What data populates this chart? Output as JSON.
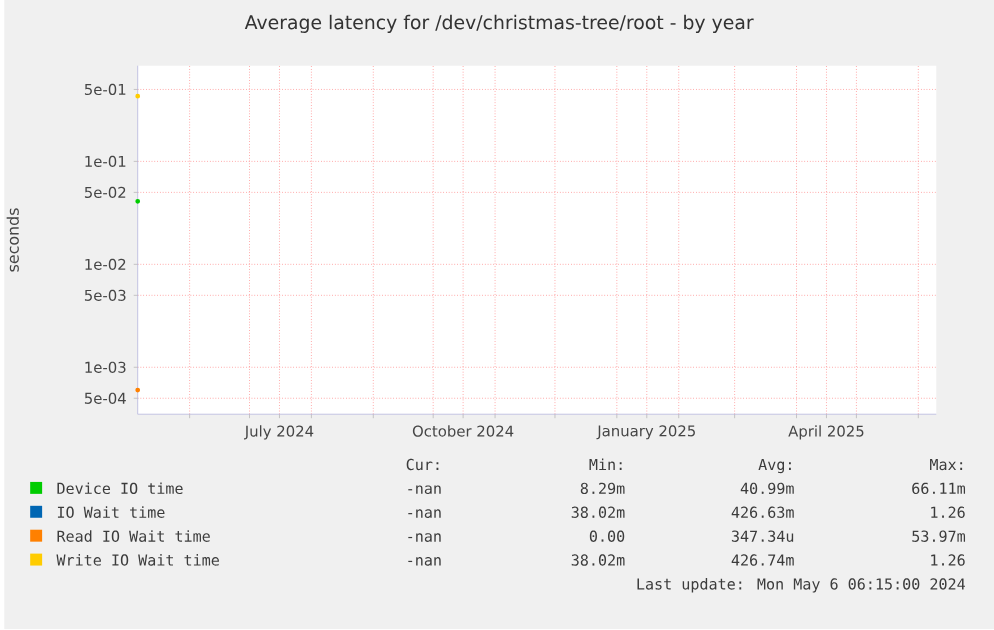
{
  "chart_data": {
    "type": "line",
    "title": "Average latency for /dev/christmas-tree/root - by year",
    "ylabel": "seconds",
    "log": "y",
    "grid": true,
    "legend": "bottom",
    "marker": "circle",
    "xlim": [
      "2024-05-06",
      "2025-06-10"
    ],
    "xticks": [
      {
        "value": "2024-06-01",
        "label": null
      },
      {
        "value": "2024-07-01",
        "label": null
      },
      {
        "value": "2024-07-16",
        "label": "July 2024"
      },
      {
        "value": "2024-08-01",
        "label": null
      },
      {
        "value": "2024-09-01",
        "label": null
      },
      {
        "value": "2024-10-01",
        "label": null
      },
      {
        "value": "2024-10-16",
        "label": "October 2024"
      },
      {
        "value": "2024-11-01",
        "label": null
      },
      {
        "value": "2024-12-01",
        "label": null
      },
      {
        "value": "2025-01-01",
        "label": null
      },
      {
        "value": "2025-01-16",
        "label": "January 2025"
      },
      {
        "value": "2025-02-01",
        "label": null
      },
      {
        "value": "2025-03-01",
        "label": null
      },
      {
        "value": "2025-04-01",
        "label": null
      },
      {
        "value": "2025-04-16",
        "label": "April 2025"
      },
      {
        "value": "2025-05-01",
        "label": null
      },
      {
        "value": "2025-06-01",
        "label": null
      }
    ],
    "ylim": [
      0.00035,
      0.85
    ],
    "yticks": [
      {
        "value": 0.0005,
        "label": "5e-04"
      },
      {
        "value": 0.001,
        "label": "1e-03"
      },
      {
        "value": 0.005,
        "label": "5e-03"
      },
      {
        "value": 0.01,
        "label": "1e-02"
      },
      {
        "value": 0.05,
        "label": "5e-02"
      },
      {
        "value": 0.1,
        "label": "1e-01"
      },
      {
        "value": 0.5,
        "label": "5e-01"
      }
    ],
    "x": [
      "2024-05-06"
    ],
    "series": [
      {
        "name": "Device IO time",
        "color": "#00cc00",
        "values": [
          0.041
        ]
      },
      {
        "name": "IO Wait time",
        "color": "#0066b3",
        "values": [
          null
        ]
      },
      {
        "name": "Read IO Wait time",
        "color": "#ff8000",
        "values": [
          0.0006
        ]
      },
      {
        "name": "Write IO Wait time",
        "color": "#ffcc00",
        "values": [
          0.43
        ]
      }
    ],
    "annotations": [
      "Cur:",
      "Min:",
      "Avg:",
      "Max:",
      "-nan",
      "8.29m",
      "40.99m",
      "66.11m",
      "-nan",
      "38.02m",
      "426.63m",
      "1.26",
      "-nan",
      "0.00",
      "347.34u",
      "53.97m",
      "-nan",
      "38.02m",
      "426.74m",
      "1.26",
      "Last update: Mon May 6 06:15:00 2024"
    ]
  }
}
